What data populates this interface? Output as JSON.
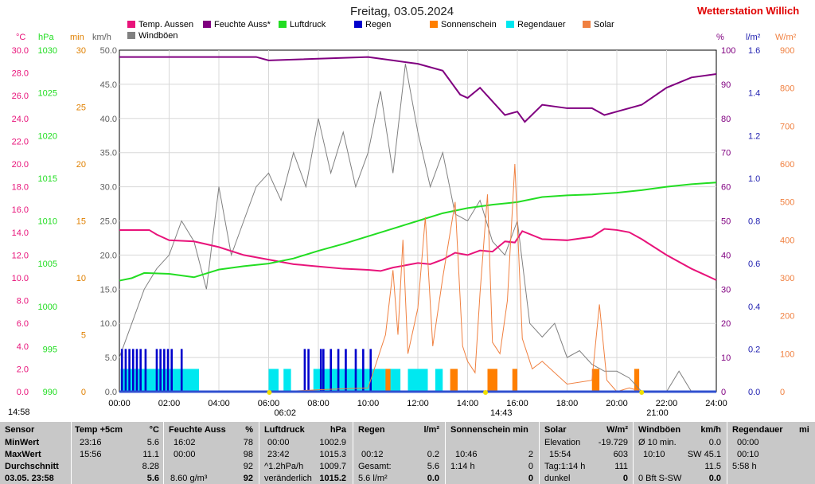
{
  "header": {
    "title": "Freitag, 03.05.2024",
    "station": "Wetterstation Willich"
  },
  "legend": [
    {
      "label": "Temp. Aussen",
      "color": "#e8137a"
    },
    {
      "label": "Feuchte Auss*",
      "color": "#800080"
    },
    {
      "label": "Luftdruck",
      "color": "#22dd22"
    },
    {
      "label": "Regen",
      "color": "#0000cc"
    },
    {
      "label": "Sonnenschein",
      "color": "#ff7f00"
    },
    {
      "label": "Regendauer",
      "color": "#00e8f0"
    },
    {
      "label": "Solar",
      "color": "#f08040"
    },
    {
      "label": "Windböen",
      "color": "#808080"
    }
  ],
  "units": {
    "temp": "°C",
    "press": "hPa",
    "min": "min",
    "wind": "km/h",
    "hum": "%",
    "rain": "l/m²",
    "solar": "W/m²"
  },
  "axes": {
    "temp_ticks": [
      "30.0",
      "28.0",
      "26.0",
      "24.0",
      "22.0",
      "20.0",
      "18.0",
      "16.0",
      "14.0",
      "12.0",
      "10.0",
      "8.0",
      "6.0",
      "4.0",
      "2.0",
      "0.0"
    ],
    "press_ticks": [
      "1030",
      "1025",
      "1020",
      "1015",
      "1010",
      "1005",
      "1000",
      "995",
      "990"
    ],
    "min_ticks": [
      "30",
      "25",
      "20",
      "15",
      "10",
      "5",
      "0"
    ],
    "wind_ticks": [
      "50.0",
      "45.0",
      "40.0",
      "35.0",
      "30.0",
      "25.0",
      "20.0",
      "15.0",
      "10.0",
      "5.0",
      "0.0"
    ],
    "hum_ticks": [
      "100",
      "90",
      "80",
      "70",
      "60",
      "50",
      "40",
      "30",
      "20",
      "10",
      "0"
    ],
    "rain_ticks": [
      "1.6",
      "1.4",
      "1.2",
      "1.0",
      "0.8",
      "0.6",
      "0.4",
      "0.2",
      "0.0"
    ],
    "solar_ticks": [
      "900",
      "800",
      "700",
      "600",
      "500",
      "400",
      "300",
      "200",
      "100",
      "0"
    ],
    "x_ticks": [
      "00:00",
      "02:00",
      "04:00",
      "06:00",
      "08:00",
      "10:00",
      "12:00",
      "14:00",
      "16:00",
      "18:00",
      "20:00",
      "22:00",
      "24:00"
    ]
  },
  "sun_markers": [
    {
      "label": "06:02",
      "hour": 6.03,
      "kind": "sunrise"
    },
    {
      "label": "14:43",
      "hour": 14.72,
      "kind": "noon"
    },
    {
      "label": "21:00",
      "hour": 21.0,
      "kind": "sunset"
    }
  ],
  "chart_data": {
    "type": "line",
    "title": "Freitag, 03.05.2024",
    "x_range": [
      0,
      24
    ],
    "series": [
      {
        "name": "Temp. Aussen",
        "axis": "temp",
        "ylim": [
          0,
          30
        ],
        "x": [
          0,
          1.2,
          1.5,
          2.0,
          3.0,
          4.0,
          5.0,
          6.0,
          7.0,
          8.0,
          9.0,
          10.0,
          10.5,
          11.0,
          11.5,
          12.0,
          12.5,
          13.0,
          13.5,
          14.0,
          14.5,
          15.0,
          15.5,
          15.9,
          16.2,
          17.0,
          18.0,
          19.0,
          19.5,
          20.0,
          20.5,
          21.0,
          22.0,
          23.0,
          24.0
        ],
        "y": [
          14.2,
          14.2,
          13.8,
          13.3,
          13.2,
          12.7,
          12.0,
          11.6,
          11.2,
          11.0,
          10.8,
          10.7,
          10.6,
          10.9,
          11.1,
          11.3,
          11.2,
          11.6,
          12.2,
          12.0,
          12.4,
          12.3,
          13.2,
          13.1,
          14.1,
          13.4,
          13.3,
          13.6,
          14.3,
          14.2,
          14.0,
          13.4,
          12.0,
          10.8,
          9.8
        ]
      },
      {
        "name": "Feuchte Auss*",
        "axis": "hum",
        "ylim": [
          0,
          100
        ],
        "x": [
          0,
          5.5,
          6.0,
          10.0,
          11.0,
          12.0,
          13.0,
          13.7,
          14.0,
          14.5,
          15.0,
          15.5,
          16.0,
          16.3,
          17.0,
          18.0,
          19.0,
          19.5,
          20.0,
          21.0,
          22.0,
          23.0,
          24.0
        ],
        "y": [
          98,
          98,
          97,
          98,
          97,
          96,
          94,
          87,
          86,
          89,
          85,
          81,
          82,
          79,
          84,
          83,
          83,
          81,
          82,
          84,
          89,
          92,
          93
        ]
      },
      {
        "name": "Luftdruck",
        "axis": "press",
        "ylim": [
          990,
          1030
        ],
        "x": [
          0,
          0.5,
          1.0,
          2.0,
          3.0,
          4.0,
          5.0,
          6.0,
          7.0,
          8.0,
          9.0,
          10.0,
          11.0,
          12.0,
          13.0,
          14.0,
          15.0,
          16.0,
          17.0,
          18.0,
          19.0,
          20.0,
          21.0,
          22.0,
          23.0,
          24.0
        ],
        "y": [
          1003.0,
          1003.3,
          1003.9,
          1003.8,
          1003.4,
          1004.3,
          1004.7,
          1005.0,
          1005.6,
          1006.5,
          1007.3,
          1008.2,
          1009.1,
          1010.0,
          1010.9,
          1011.5,
          1011.9,
          1012.2,
          1012.8,
          1013.0,
          1013.1,
          1013.3,
          1013.6,
          1014.0,
          1014.3,
          1014.5
        ]
      },
      {
        "name": "Solar",
        "axis": "solar",
        "ylim": [
          0,
          900
        ],
        "x": [
          6.5,
          8.0,
          10.0,
          10.7,
          11.0,
          11.2,
          11.4,
          11.6,
          12.0,
          12.3,
          12.6,
          13.0,
          13.5,
          13.8,
          14.0,
          14.3,
          14.5,
          14.8,
          15.0,
          15.3,
          15.6,
          15.9,
          16.2,
          16.6,
          17.0,
          18.0,
          19.0,
          19.3,
          19.6,
          20.0,
          20.5,
          21.0,
          21.5
        ],
        "y": [
          0,
          5,
          10,
          150,
          320,
          150,
          400,
          100,
          220,
          460,
          120,
          300,
          500,
          120,
          80,
          50,
          260,
          520,
          130,
          100,
          240,
          600,
          140,
          60,
          80,
          20,
          30,
          230,
          30,
          0,
          10,
          0,
          0
        ]
      }
    ],
    "gusts": {
      "name": "Windböen",
      "axis": "wind",
      "ylim": [
        0,
        50
      ],
      "x": [
        0,
        0.5,
        1.0,
        1.5,
        2.0,
        2.5,
        3.0,
        3.5,
        4.0,
        4.5,
        5.0,
        5.5,
        6.0,
        6.5,
        7.0,
        7.5,
        8.0,
        8.5,
        9.0,
        9.5,
        10.0,
        10.5,
        11.0,
        11.5,
        12.0,
        12.5,
        13.0,
        13.5,
        14.0,
        14.5,
        15.0,
        15.5,
        16.0,
        16.5,
        17.0,
        17.5,
        18.0,
        18.5,
        19.0,
        19.5,
        20.0,
        20.5,
        21.0,
        21.5,
        22.0,
        22.5,
        23.0,
        23.5,
        24.0
      ],
      "y": [
        5,
        10,
        15,
        18,
        20,
        25,
        22,
        15,
        30,
        20,
        25,
        30,
        32,
        28,
        35,
        30,
        40,
        32,
        38,
        30,
        35,
        44,
        32,
        48,
        38,
        30,
        35,
        26,
        25,
        28,
        22,
        20,
        25,
        10,
        8,
        10,
        5,
        6,
        4,
        3,
        3,
        2,
        0,
        0,
        0,
        3,
        0,
        0,
        0
      ]
    },
    "rain_bars": {
      "name": "Regen",
      "axis": "rain",
      "ylim": [
        0,
        1.6
      ],
      "value": 0.2,
      "x": [
        0.1,
        0.25,
        0.4,
        0.55,
        0.7,
        0.85,
        1.05,
        1.5,
        1.65,
        1.8,
        1.95,
        2.1,
        2.5,
        7.45,
        7.6,
        8.1,
        8.2,
        8.5,
        8.8,
        9.1,
        9.5,
        9.8,
        10.1
      ]
    },
    "rain_duration": {
      "name": "Regendauer",
      "axis": "min",
      "ylim": [
        0,
        30
      ],
      "segments": [
        [
          0.05,
          3.2,
          2.0
        ],
        [
          6.0,
          6.4,
          2.0
        ],
        [
          6.6,
          6.9,
          2.0
        ],
        [
          7.8,
          11.3,
          2.0
        ],
        [
          11.6,
          12.4,
          2.0
        ],
        [
          12.7,
          13.0,
          2.0
        ]
      ]
    },
    "sunshine": {
      "name": "Sonnenschein",
      "axis": "min",
      "ylim": [
        0,
        30
      ],
      "segments": [
        [
          10.7,
          10.9,
          2.0
        ],
        [
          13.3,
          13.6,
          2.0
        ],
        [
          14.8,
          15.2,
          2.0
        ],
        [
          15.8,
          16.0,
          2.0
        ],
        [
          19.0,
          19.3,
          2.0
        ],
        [
          20.7,
          20.9,
          2.0
        ]
      ]
    }
  },
  "table": {
    "sensor": {
      "header": "Sensor",
      "rows": [
        "MinWert",
        "MaxWert",
        "Durchschnitt",
        "03.05. 23:58"
      ]
    },
    "temp": {
      "header": "Temp +5cm",
      "unit": "°C",
      "rows": [
        [
          "23:16",
          "5.6"
        ],
        [
          "15:56",
          "11.1"
        ],
        [
          "",
          "8.28"
        ],
        [
          "",
          "5.6"
        ]
      ]
    },
    "feuchte": {
      "header": "Feuchte Auss",
      "unit": "%",
      "rows": [
        [
          "16:02",
          "78"
        ],
        [
          "00:00",
          "98"
        ],
        [
          "",
          "92"
        ],
        [
          "8.60 g/m³",
          "92"
        ]
      ]
    },
    "druck": {
      "header": "Luftdruck",
      "unit": "hPa",
      "rows": [
        [
          "00:00",
          "1002.9"
        ],
        [
          "23:42",
          "1015.3"
        ],
        [
          "^1.2hPa/h",
          "1009.7"
        ],
        [
          "veränderlich",
          "1015.2"
        ]
      ]
    },
    "regen": {
      "header": "Regen",
      "unit": "l/m²",
      "rows": [
        [
          "",
          ""
        ],
        [
          "00:12",
          "0.2"
        ],
        [
          "Gesamt:",
          "5.6"
        ],
        [
          "5.6 l/m²",
          "0.0"
        ]
      ]
    },
    "sonne": {
      "header": "Sonnenschein min",
      "rows": [
        [
          "",
          ""
        ],
        [
          "10:46",
          "2"
        ],
        [
          "1:14 h",
          "0"
        ],
        [
          "",
          "0"
        ]
      ]
    },
    "solar": {
      "header": "Solar",
      "unit": "W/m²",
      "rows": [
        [
          "Elevation",
          "-19.729"
        ],
        [
          "15:54",
          "603"
        ],
        [
          "Tag:1:14 h",
          "111"
        ],
        [
          "dunkel",
          "0"
        ]
      ]
    },
    "wind": {
      "header": "Windböen",
      "unit": "km/h",
      "rows": [
        [
          "Ø 10 min.",
          "0.0"
        ],
        [
          "10:10",
          "SW 45.1"
        ],
        [
          "",
          "11.5"
        ],
        [
          "0 Bft S-SW",
          "0.0"
        ]
      ]
    },
    "regendauer": {
      "header": "Regendauer",
      "unit": "mi",
      "rows": [
        [
          "00:00",
          ""
        ],
        [
          "00:10",
          ""
        ],
        [
          "5:58 h",
          ""
        ],
        [
          "",
          ""
        ]
      ]
    }
  },
  "footer_times": {
    "left": "14:58"
  }
}
